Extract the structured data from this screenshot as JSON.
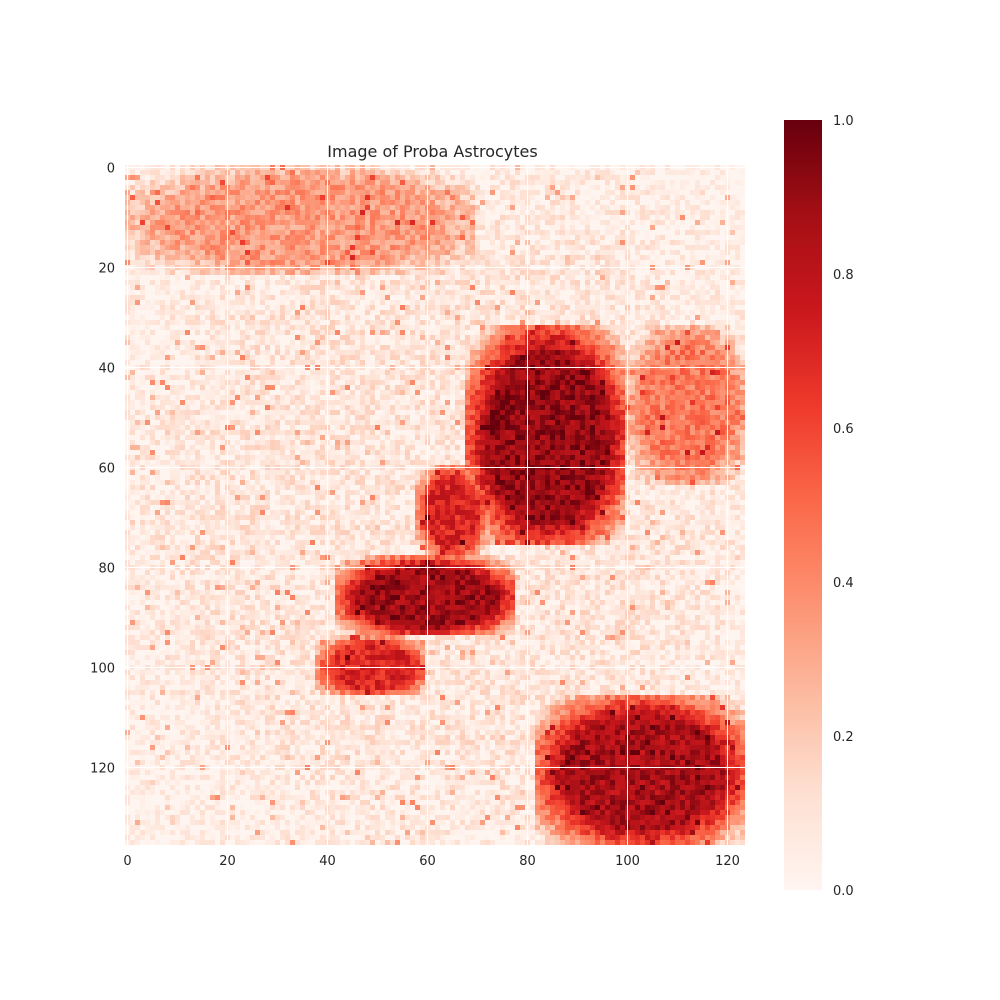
{
  "chart_data": {
    "type": "heatmap",
    "title": "Image of Proba Astrocytes",
    "xlabel": "",
    "ylabel": "",
    "n_cols": 124,
    "n_rows": 136,
    "xlim": [
      -0.5,
      123.5
    ],
    "ylim": [
      135.5,
      -0.5
    ],
    "xticks": [
      0,
      20,
      40,
      60,
      80,
      100,
      120
    ],
    "yticks": [
      0,
      20,
      40,
      60,
      80,
      100,
      120
    ],
    "grid": true,
    "colormap": "Reds",
    "colormap_stops": [
      "#fff5f0",
      "#fee0d2",
      "#fcbba1",
      "#fc9272",
      "#fb6a4a",
      "#ef3b2c",
      "#cb181d",
      "#a50f15",
      "#67000d"
    ],
    "colorbar": {
      "range": [
        0.0,
        1.0
      ],
      "ticks": [
        "0.0",
        "0.2",
        "0.4",
        "0.6",
        "0.8",
        "1.0"
      ],
      "placement": "right"
    },
    "regions_approx": [
      {
        "cols": [
          68,
          100
        ],
        "rows": [
          32,
          76
        ],
        "level": 0.9
      },
      {
        "cols": [
          42,
          78
        ],
        "rows": [
          78,
          94
        ],
        "level": 0.88
      },
      {
        "cols": [
          58,
          72
        ],
        "rows": [
          60,
          78
        ],
        "level": 0.7
      },
      {
        "cols": [
          38,
          60
        ],
        "rows": [
          94,
          106
        ],
        "level": 0.7
      },
      {
        "cols": [
          82,
          124
        ],
        "rows": [
          106,
          136
        ],
        "level": 0.85
      },
      {
        "cols": [
          100,
          124
        ],
        "rows": [
          32,
          64
        ],
        "level": 0.45
      },
      {
        "cols": [
          0,
          70
        ],
        "rows": [
          0,
          22
        ],
        "level": 0.35
      },
      {
        "cols": [
          0,
          124
        ],
        "rows": [
          0,
          136
        ],
        "level": 0.08
      }
    ]
  }
}
